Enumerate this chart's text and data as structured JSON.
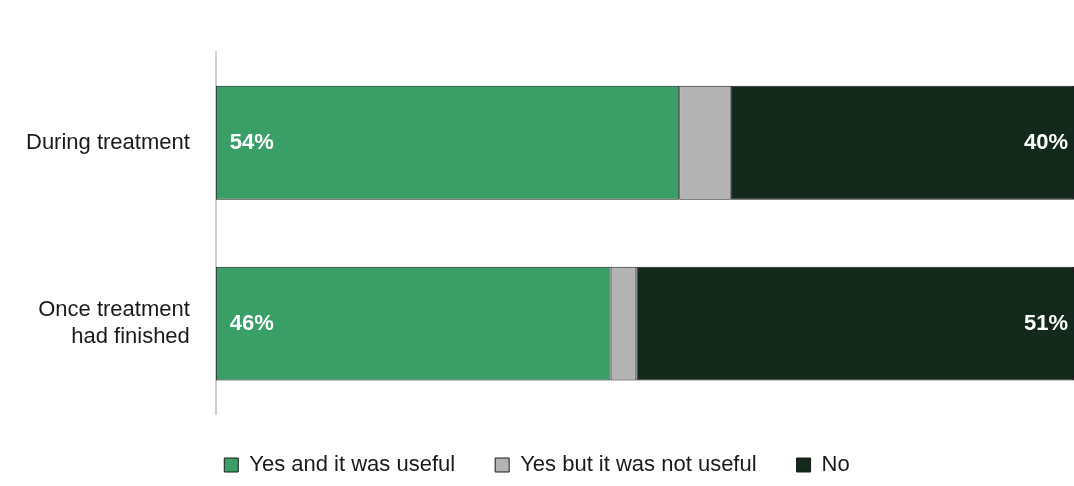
{
  "chart_data": {
    "type": "bar",
    "orientation": "horizontal",
    "stacked": true,
    "categories": [
      "During treatment",
      "Once treatment\nhad finished"
    ],
    "series": [
      {
        "name": "Yes and it was useful",
        "color": "#3a9e67",
        "values": [
          54,
          46
        ],
        "value_labels": [
          "54%",
          "46%"
        ]
      },
      {
        "name": "Yes but it was not useful",
        "color": "#b3b3b3",
        "values": [
          6,
          3
        ],
        "value_labels": [
          null,
          null
        ]
      },
      {
        "name": "No",
        "color": "#12291c",
        "values": [
          40,
          51
        ],
        "value_labels": [
          "40%",
          "51%"
        ]
      }
    ],
    "xlim": [
      0,
      100
    ],
    "tick_labels": "y",
    "legend": "bottom"
  }
}
